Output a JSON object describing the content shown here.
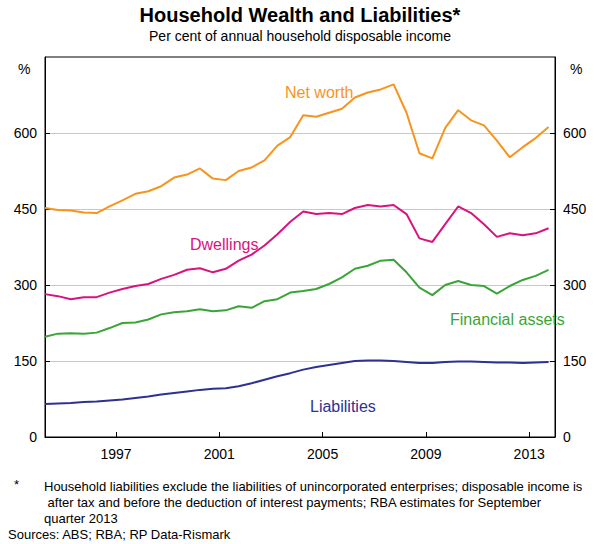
{
  "chart_data": {
    "type": "line",
    "title": "Household Wealth and Liabilities*",
    "subtitle": "Per cent of annual household disposable income",
    "y_unit": "%",
    "footnote_marker": "*",
    "footnote": "Household liabilities exclude the liabilities of unincorporated enterprises; disposable income is after tax and before the deduction of interest payments; RBA estimates for September quarter 2013",
    "source": "Sources: ABS; RBA; RP Data-Rismark",
    "x": [
      1994.25,
      1994.75,
      1995.25,
      1995.75,
      1996.25,
      1996.75,
      1997.25,
      1997.75,
      1998.25,
      1998.75,
      1999.25,
      1999.75,
      2000.25,
      2000.75,
      2001.25,
      2001.75,
      2002.25,
      2002.75,
      2003.25,
      2003.75,
      2004.25,
      2004.75,
      2005.25,
      2005.75,
      2006.25,
      2006.75,
      2007.25,
      2007.75,
      2008.25,
      2008.75,
      2009.25,
      2009.75,
      2010.25,
      2010.75,
      2011.25,
      2011.75,
      2012.25,
      2012.75,
      2013.25,
      2013.75
    ],
    "series": [
      {
        "name": "Net worth",
        "color": "#f7941d",
        "values": [
          452,
          448,
          447,
          443,
          442,
          455,
          467,
          480,
          485,
          495,
          512,
          518,
          530,
          510,
          507,
          525,
          532,
          546,
          575,
          592,
          635,
          632,
          640,
          648,
          670,
          680,
          686,
          696,
          640,
          560,
          550,
          610,
          645,
          625,
          615,
          585,
          552,
          572,
          590,
          612
        ]
      },
      {
        "name": "Dwellings",
        "color": "#d8137f",
        "values": [
          282,
          278,
          272,
          276,
          276,
          285,
          292,
          298,
          302,
          312,
          320,
          330,
          333,
          325,
          332,
          348,
          360,
          378,
          400,
          425,
          445,
          440,
          442,
          440,
          452,
          458,
          455,
          458,
          440,
          392,
          385,
          420,
          455,
          442,
          420,
          395,
          402,
          398,
          402,
          412
        ]
      },
      {
        "name": "Financial assets",
        "color": "#3aa537",
        "values": [
          198,
          204,
          205,
          204,
          206,
          215,
          225,
          226,
          232,
          242,
          246,
          248,
          252,
          248,
          250,
          258,
          255,
          268,
          272,
          285,
          288,
          292,
          302,
          315,
          332,
          338,
          348,
          350,
          325,
          295,
          280,
          300,
          308,
          300,
          298,
          283,
          298,
          310,
          318,
          330
        ]
      },
      {
        "name": "Liabilities",
        "color": "#2e3192",
        "values": [
          65,
          66,
          67,
          69,
          70,
          72,
          74,
          77,
          80,
          84,
          87,
          90,
          93,
          95,
          96,
          100,
          106,
          113,
          120,
          126,
          133,
          138,
          142,
          146,
          150,
          151,
          151,
          150,
          148,
          146,
          146,
          148,
          149,
          149,
          148,
          147,
          147,
          146,
          147,
          148
        ]
      }
    ],
    "xlim": [
      1994.25,
      2014.0
    ],
    "xticks": [
      1997,
      2001,
      2005,
      2009,
      2013
    ],
    "ylim": [
      0,
      750
    ],
    "yticks": [
      0,
      150,
      300,
      450,
      600
    ],
    "y2lim": [
      0,
      750
    ],
    "y2ticks": [
      0,
      150,
      300,
      450,
      600
    ],
    "grid": true
  }
}
